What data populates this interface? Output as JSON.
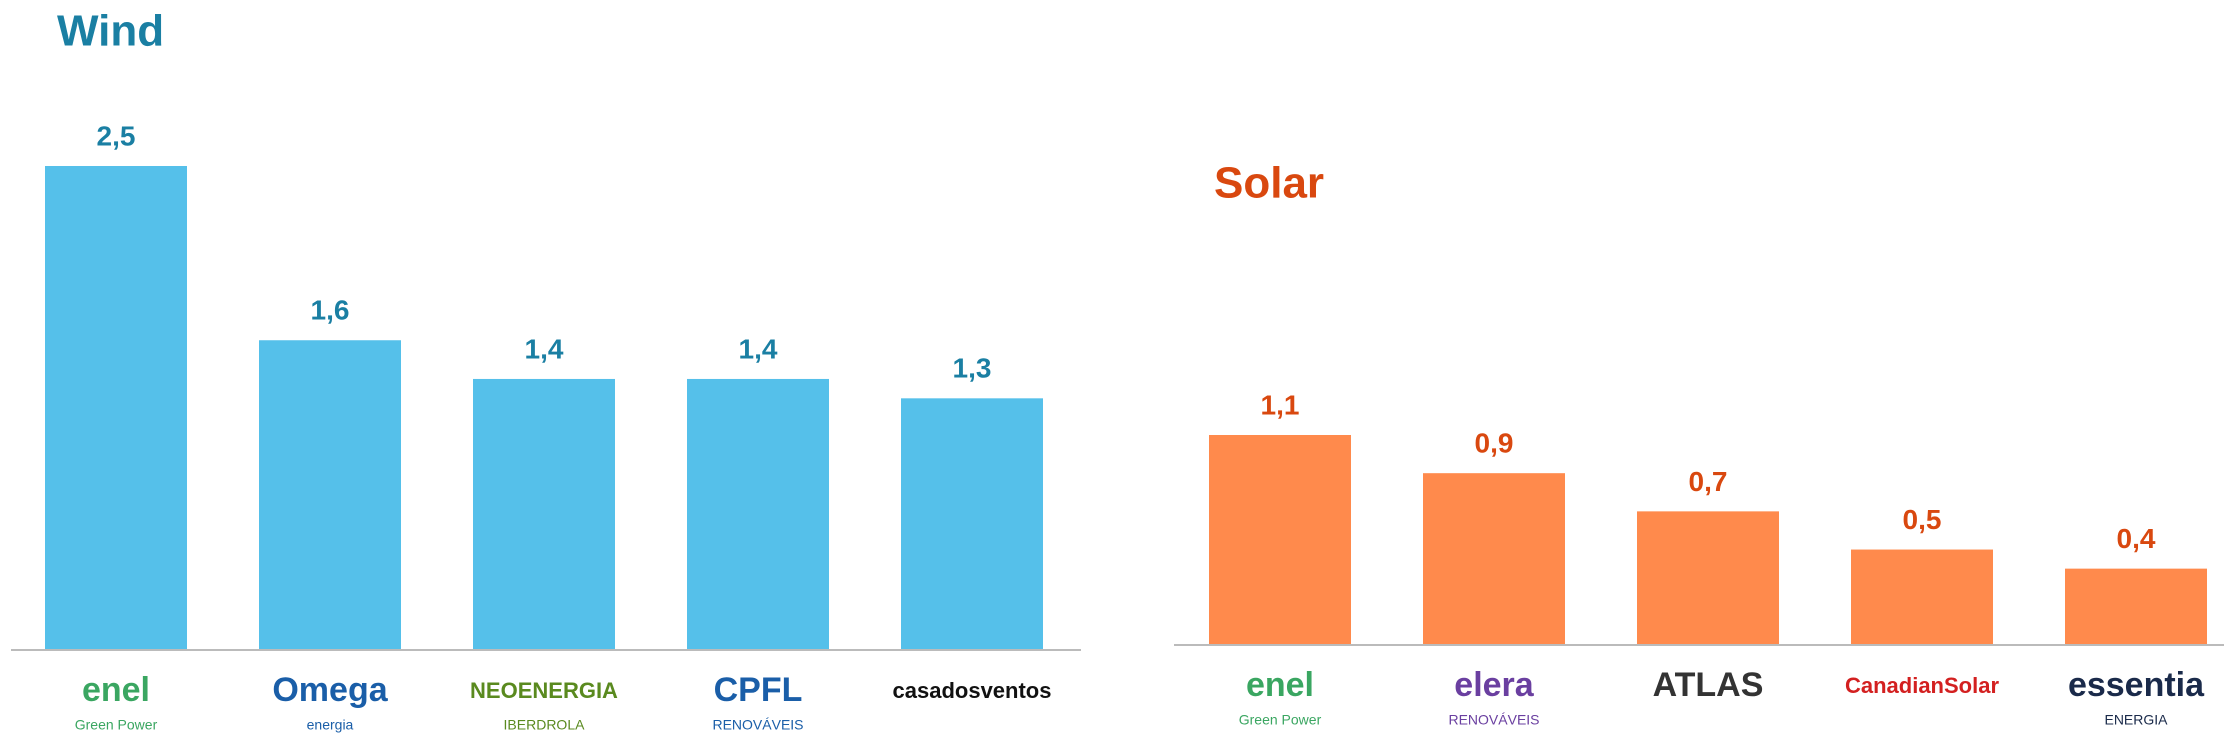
{
  "chart_data": [
    {
      "type": "bar",
      "title": "Wind",
      "color": "#55c0ea",
      "label_color": "#1a7fa3",
      "categories": [
        "enel",
        "Omega",
        "NEOENERGIA",
        "CPFL",
        "casadosventos"
      ],
      "subtitles": [
        "Green Power",
        "energia",
        "IBERDROLA",
        "RENOVÁVEIS",
        null
      ],
      "logo_colors": [
        "#3aa661",
        "#1a5ea8",
        "#5a8a1f",
        "#1a5ea8",
        "#111111"
      ],
      "values": [
        2.5,
        1.6,
        1.4,
        1.4,
        1.3
      ],
      "value_labels": [
        "2,5",
        "1,6",
        "1,4",
        "1,4",
        "1,3"
      ],
      "ylim": [
        0,
        2.5
      ]
    },
    {
      "type": "bar",
      "title": "Solar",
      "color": "#ff8a4c",
      "label_color": "#d9480f",
      "categories": [
        "enel",
        "elera",
        "ATLAS",
        "CanadianSolar",
        "essentia"
      ],
      "subtitles": [
        "Green Power",
        "RENOVÁVEIS",
        null,
        null,
        "ENERGIA"
      ],
      "logo_colors": [
        "#3aa661",
        "#6a3fa0",
        "#333333",
        "#d32020",
        "#1a2a4a"
      ],
      "values": [
        1.1,
        0.9,
        0.7,
        0.5,
        0.4
      ],
      "value_labels": [
        "1,1",
        "0,9",
        "0,7",
        "0,5",
        "0,4"
      ],
      "ylim": [
        0,
        1.1
      ]
    }
  ]
}
